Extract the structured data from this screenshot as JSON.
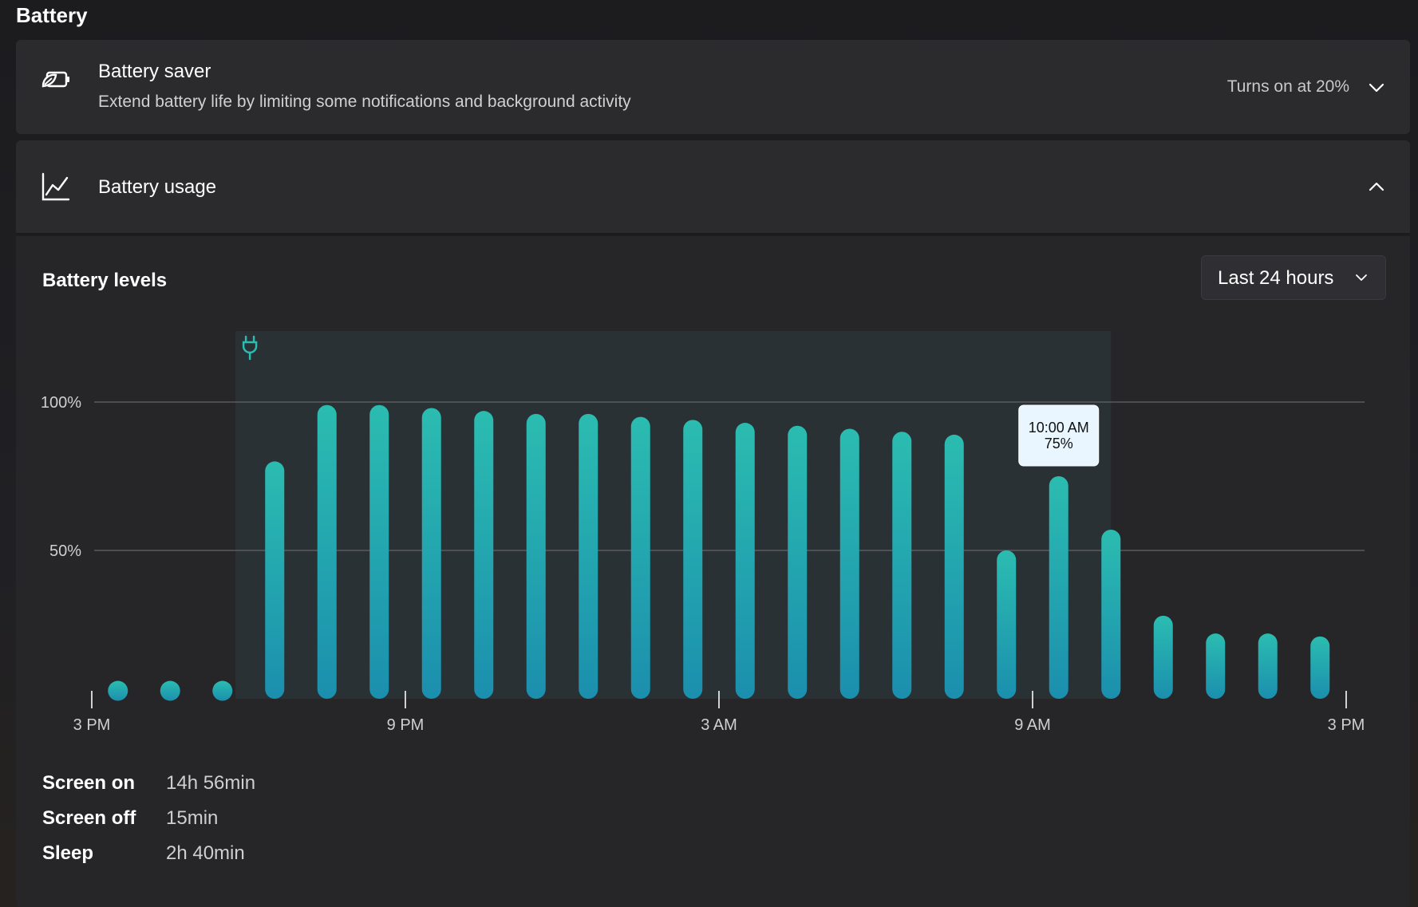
{
  "page": {
    "title": "Battery"
  },
  "battery_saver": {
    "title": "Battery saver",
    "description": "Extend battery life by limiting some notifications and background activity",
    "value": "Turns on at 20%",
    "icon": "battery-saver-leaf-icon"
  },
  "battery_usage": {
    "title": "Battery usage",
    "icon": "line-chart-icon",
    "levels_title": "Battery levels",
    "range_dropdown": {
      "selected": "Last 24 hours"
    },
    "tooltip": {
      "time": "10:00 AM",
      "value": "75%"
    },
    "stats": [
      {
        "label": "Screen on",
        "value": "14h 56min"
      },
      {
        "label": "Screen off",
        "value": "15min"
      },
      {
        "label": "Sleep",
        "value": "2h 40min"
      }
    ]
  },
  "colors": {
    "bar_top": "#2bbcb0",
    "bar_bottom": "#1b8fae",
    "charging_region": "#2a3436",
    "gridline": "#5a5a5e",
    "tooltip_bg": "#e9f6ff"
  },
  "chart_data": {
    "type": "bar",
    "ylim": [
      0,
      100
    ],
    "y_ticks": [
      "100%",
      "50%"
    ],
    "x_tick_labels": [
      "3 PM",
      "9 PM",
      "3 AM",
      "9 AM",
      "3 PM"
    ],
    "charging_icon": "plug-icon",
    "hours": [
      "3 PM",
      "4 PM",
      "5 PM",
      "6 PM",
      "7 PM",
      "8 PM",
      "9 PM",
      "10 PM",
      "11 PM",
      "12 AM",
      "1 AM",
      "2 AM",
      "3 AM",
      "4 AM",
      "5 AM",
      "6 AM",
      "7 AM",
      "8 AM",
      "9 AM",
      "10 AM",
      "11 AM",
      "12 PM",
      "1 PM",
      "2 PM"
    ],
    "values": [
      0,
      0,
      0,
      80,
      99,
      99,
      98,
      97,
      96,
      96,
      95,
      94,
      93,
      92,
      91,
      90,
      89,
      50,
      75,
      57,
      28,
      22,
      22,
      21
    ],
    "charging_range": [
      "6 PM",
      "10 AM"
    ],
    "highlighted": "9 AM"
  }
}
